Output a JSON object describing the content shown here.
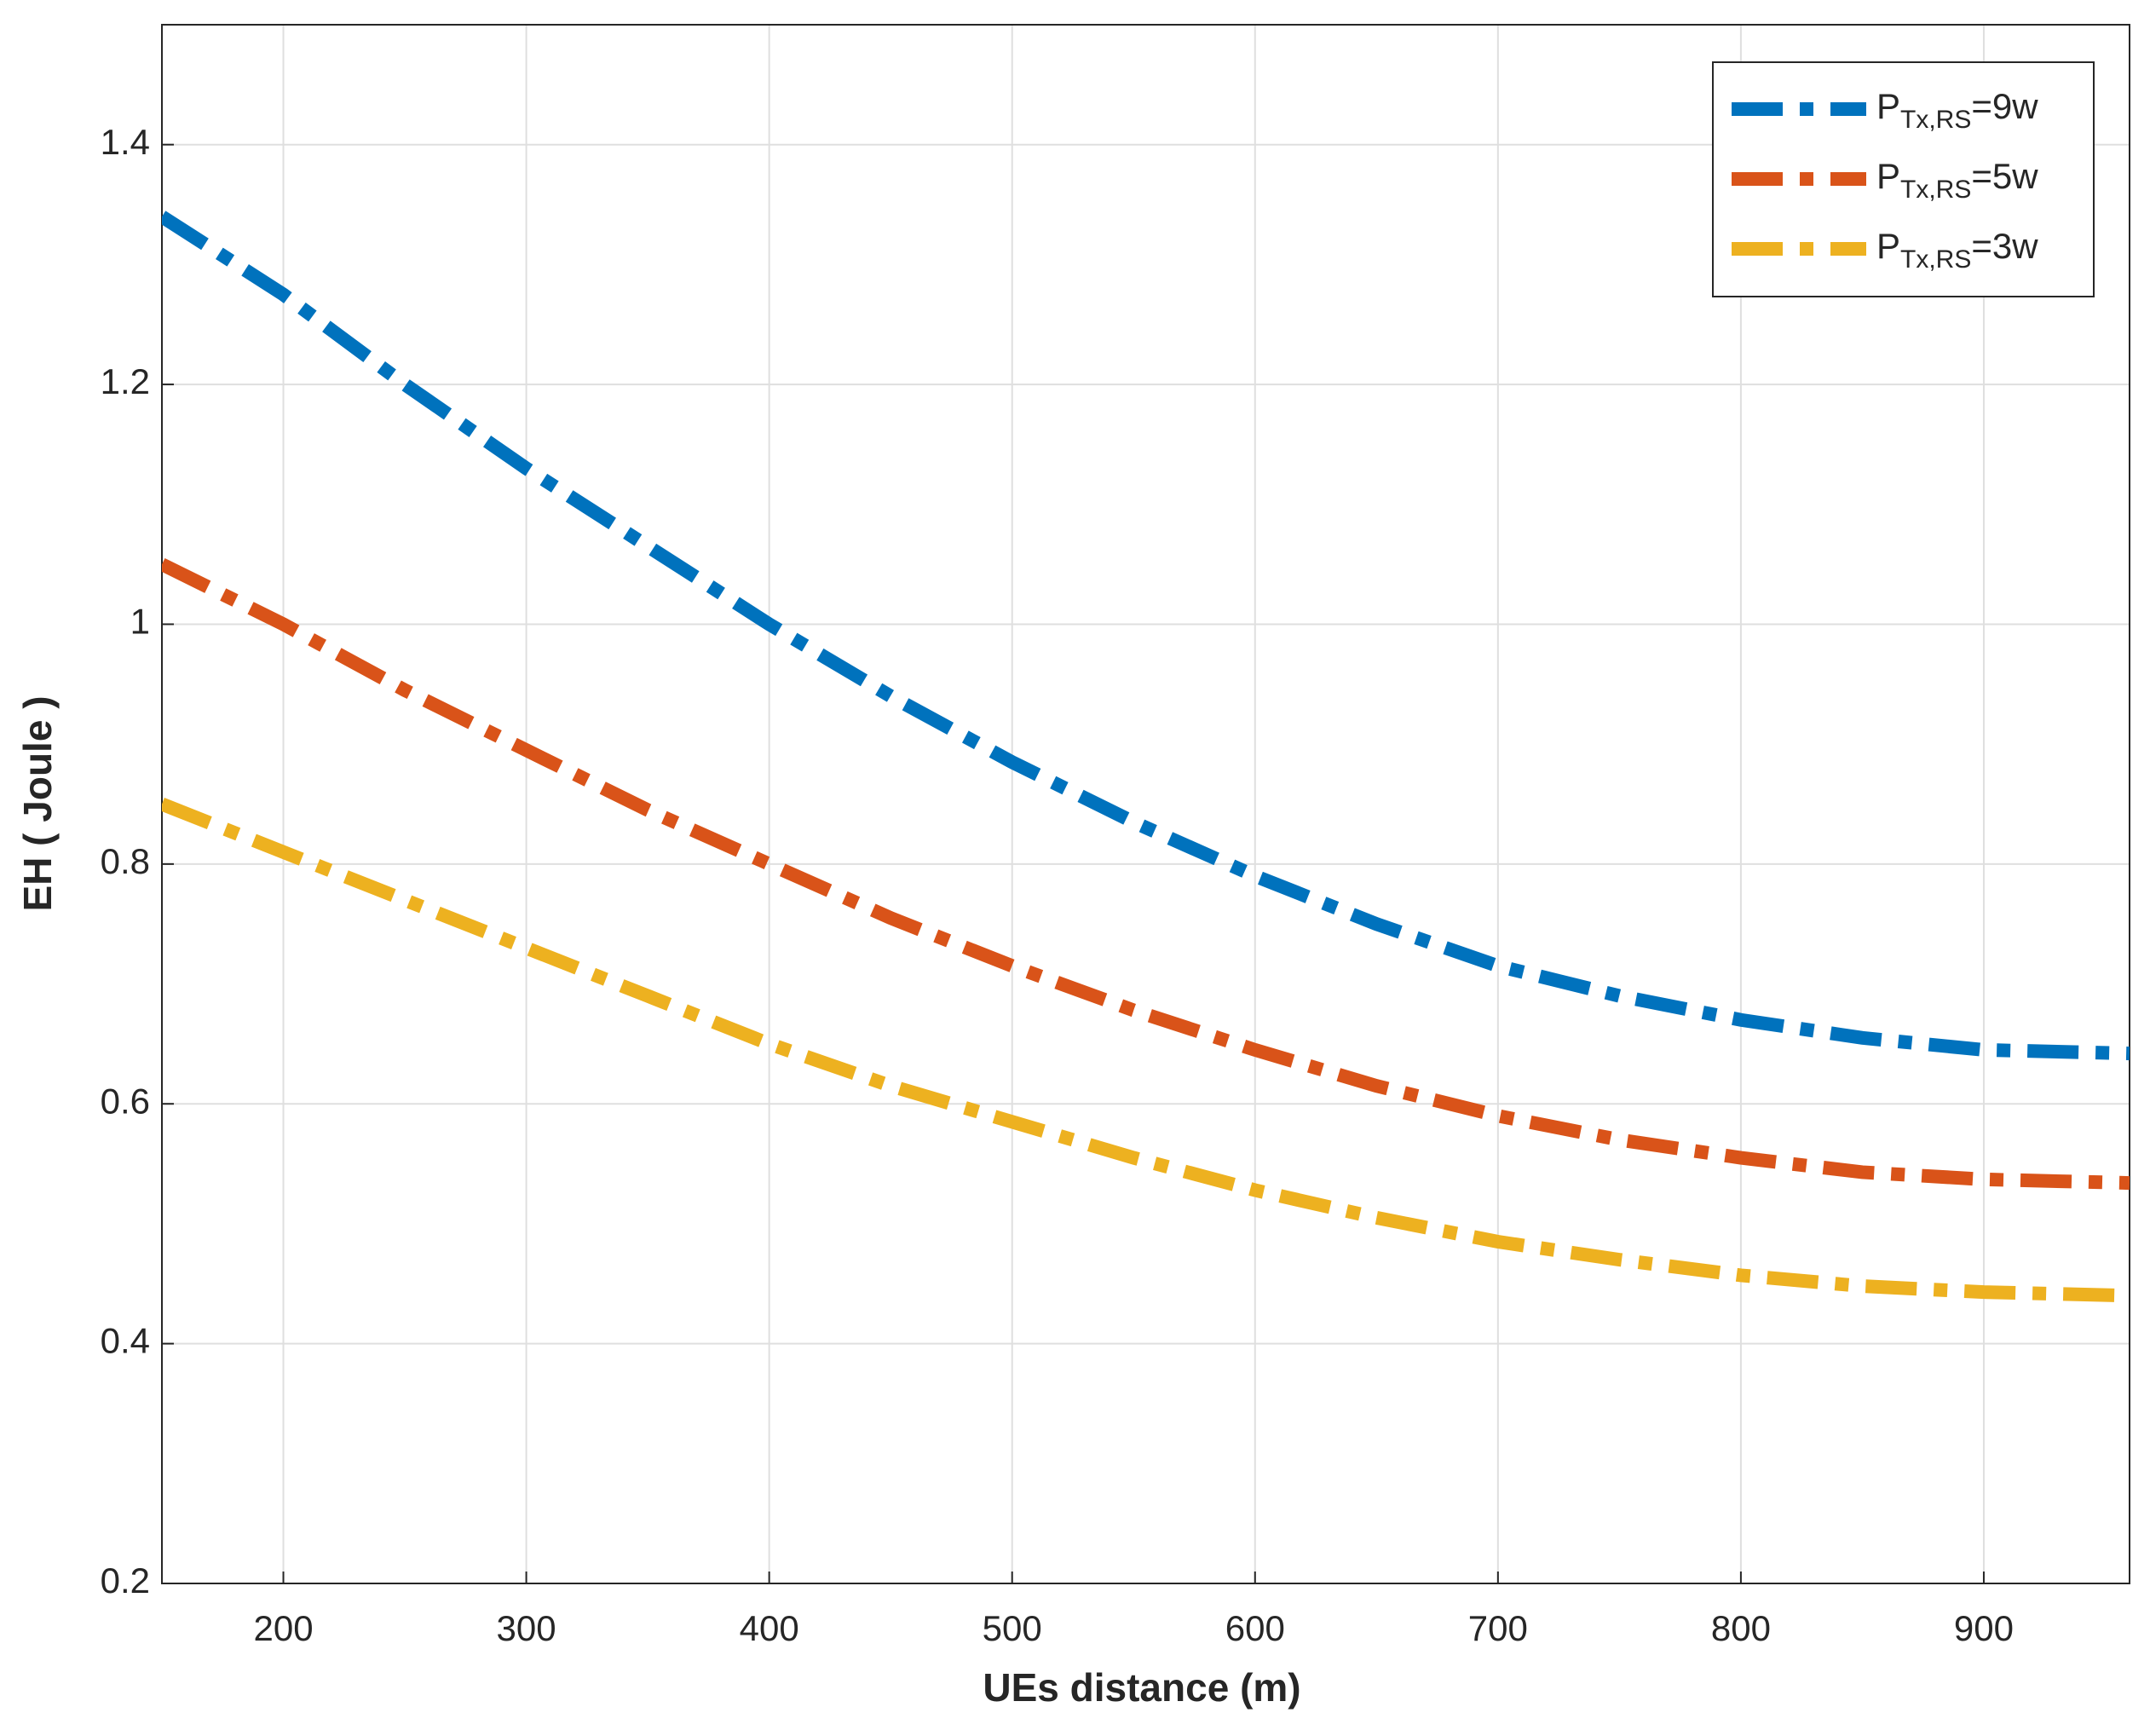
{
  "chart_data": {
    "type": "line",
    "xlabel": "UEs distance (m)",
    "ylabel": "EH ( Joule )",
    "x": [
      150,
      200,
      250,
      300,
      350,
      400,
      450,
      500,
      550,
      600,
      650,
      700,
      750,
      800,
      850,
      900,
      960
    ],
    "series": [
      {
        "name": {
          "base": "P",
          "sub": "Tx,RS",
          "suffix": "=9w"
        },
        "color": "#0072bd",
        "values": [
          1.34,
          1.275,
          1.2,
          1.13,
          1.065,
          1.0,
          0.94,
          0.885,
          0.835,
          0.79,
          0.75,
          0.715,
          0.69,
          0.67,
          0.655,
          0.645,
          0.642
        ]
      },
      {
        "name": {
          "base": "P",
          "sub": "Tx,RS",
          "suffix": "=5w"
        },
        "color": "#d95319",
        "values": [
          1.05,
          1.0,
          0.945,
          0.895,
          0.845,
          0.8,
          0.755,
          0.715,
          0.678,
          0.645,
          0.615,
          0.59,
          0.57,
          0.555,
          0.543,
          0.537,
          0.534
        ]
      },
      {
        "name": {
          "base": "P",
          "sub": "Tx,RS",
          "suffix": "=3w"
        },
        "color": "#edb120",
        "values": [
          0.85,
          0.81,
          0.77,
          0.73,
          0.69,
          0.65,
          0.615,
          0.585,
          0.555,
          0.528,
          0.505,
          0.485,
          0.47,
          0.457,
          0.448,
          0.443,
          0.44
        ]
      }
    ],
    "xlim": [
      150,
      960
    ],
    "ylim": [
      0.2,
      1.5
    ],
    "xticks": [
      200,
      300,
      400,
      500,
      600,
      700,
      800,
      900
    ],
    "yticks": [
      0.2,
      0.4,
      0.6,
      0.8,
      1,
      1.2,
      1.4
    ],
    "grid": true,
    "legend": "upper right"
  }
}
